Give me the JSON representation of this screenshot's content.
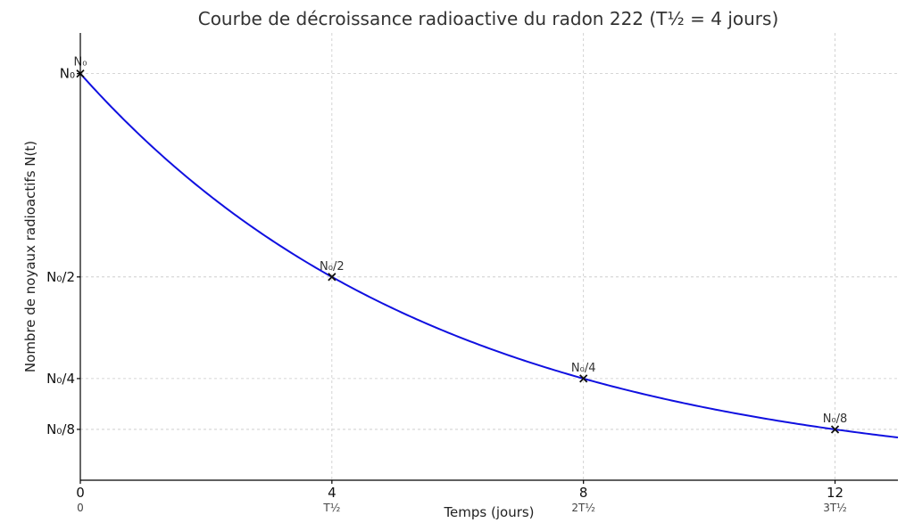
{
  "chart_data": {
    "type": "line",
    "title": "Courbe de décroissance radioactive du radon 222 (T½ = 4 jours)",
    "xlabel": "Temps (jours)",
    "ylabel": "Nombre de noyaux radioactifs N(t)",
    "xlim": [
      0,
      13
    ],
    "ylim": [
      0,
      1.1
    ],
    "grid": true,
    "half_life": 4,
    "x_ticks": [
      {
        "value": 0,
        "label": "0",
        "sublabel": "0"
      },
      {
        "value": 4,
        "label": "4",
        "sublabel": "T½"
      },
      {
        "value": 8,
        "label": "8",
        "sublabel": "2T½"
      },
      {
        "value": 12,
        "label": "12",
        "sublabel": "3T½"
      }
    ],
    "y_ticks": [
      {
        "value": 1,
        "label": "N₀"
      },
      {
        "value": 0.5,
        "label": "N₀/2"
      },
      {
        "value": 0.25,
        "label": "N₀/4"
      },
      {
        "value": 0.125,
        "label": "N₀/8"
      }
    ],
    "marked_points": [
      {
        "x": 0,
        "y": 1,
        "label": "N₀"
      },
      {
        "x": 4,
        "y": 0.5,
        "label": "N₀/2"
      },
      {
        "x": 8,
        "y": 0.25,
        "label": "N₀/4"
      },
      {
        "x": 12,
        "y": 0.125,
        "label": "N₀/8"
      }
    ],
    "series": [
      {
        "color": "#1010e0",
        "function": "N0 * 2^(-t/4)"
      }
    ]
  }
}
